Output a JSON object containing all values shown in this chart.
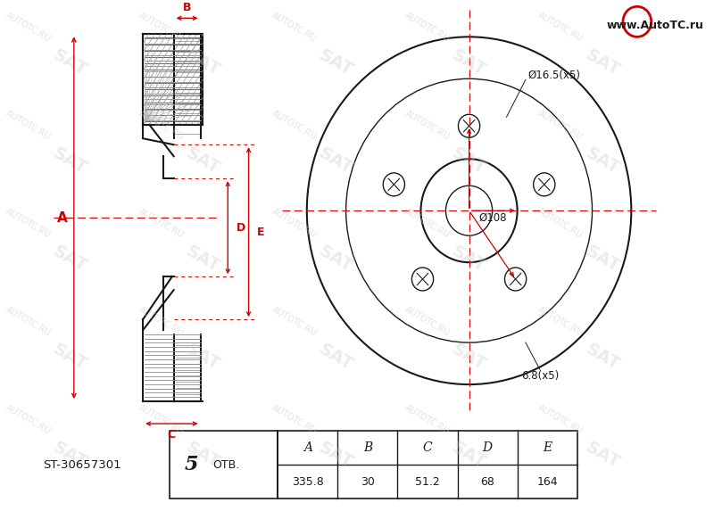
{
  "bg_color": "#ffffff",
  "line_color": "#1a1a1a",
  "red_color": "#cc0000",
  "part_number": "ST-30657301",
  "otv_label": "OTB.",
  "bolt_count_label": "5",
  "table_headers": [
    "A",
    "B",
    "C",
    "D",
    "E"
  ],
  "table_values": [
    "335.8",
    "30",
    "51.2",
    "68",
    "164"
  ],
  "front_label": "Ø16.5(x5)",
  "center_label": "Ø108",
  "bolt_hole_label": "6.8(x5)",
  "website": "www.AutoTC.ru",
  "watermark_texts": [
    "AUTOTC.RU",
    "SAT"
  ],
  "wm_color": "#c8c8c8"
}
